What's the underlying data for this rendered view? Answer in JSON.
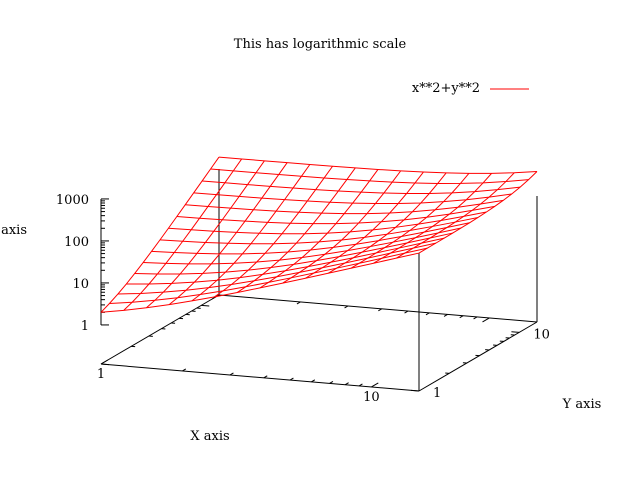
{
  "chart_data": {
    "type": "surface",
    "title": "This has logarithmic scale",
    "xlabel": "X axis",
    "ylabel": "Y axis",
    "zlabel": "Z axis",
    "function": "x**2+y**2",
    "x_range": [
      1,
      15
    ],
    "y_range": [
      1,
      15
    ],
    "z_range": [
      1,
      1000
    ],
    "log_scale": {
      "x": true,
      "y": true,
      "z": true
    },
    "mesh_size": 15,
    "x_tick_labels": [
      "1",
      "10"
    ],
    "y_tick_labels": [
      "1",
      "10"
    ],
    "z_tick_labels": [
      "1",
      "10",
      "100",
      "1000"
    ],
    "series": [
      {
        "name": "x**2+y**2",
        "color": "#ff0000"
      }
    ],
    "legend_position": "top-right"
  }
}
